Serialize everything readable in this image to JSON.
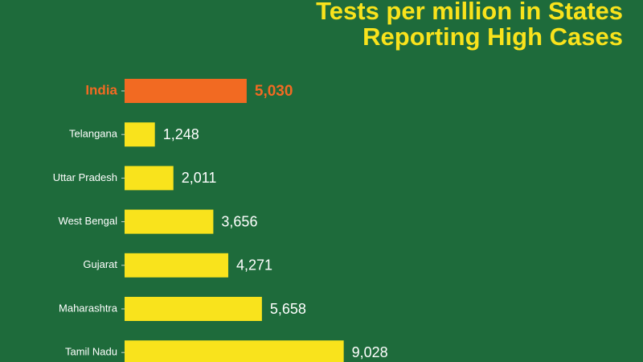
{
  "chart_data": {
    "type": "bar",
    "orientation": "horizontal",
    "title": [
      "Tests per million in States",
      "Reporting High Cases"
    ],
    "categories": [
      "India",
      "Telangana",
      "Uttar Pradesh",
      "West Bengal",
      "Gujarat",
      "Maharashtra",
      "Tamil Nadu"
    ],
    "values": [
      5030,
      1248,
      2011,
      3656,
      4271,
      5658,
      9028
    ],
    "value_labels": [
      "5,030",
      "1,248",
      "2,011",
      "3,656",
      "4,271",
      "5,658",
      "9,028"
    ],
    "colors": [
      "#f26a22",
      "#f9e31c",
      "#f9e31c",
      "#f9e31c",
      "#f9e31c",
      "#f9e31c",
      "#f9e31c"
    ],
    "background": "#1e6b3b"
  }
}
